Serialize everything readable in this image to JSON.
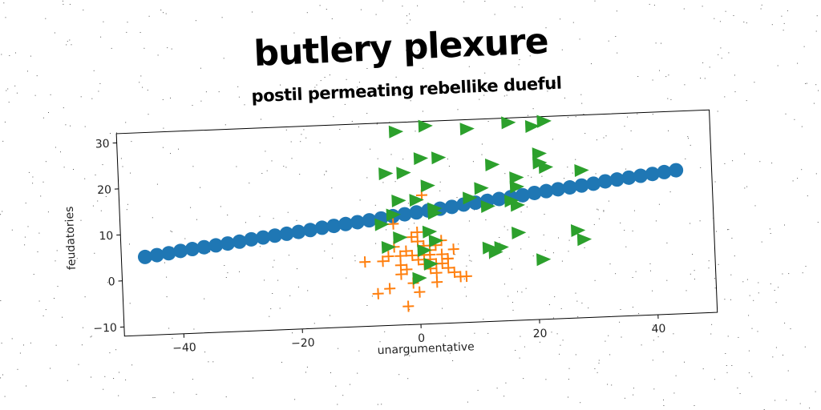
{
  "chart_data": {
    "type": "scatter",
    "title": "butlery plexure",
    "subtitle": "postil permeating rebellike dueful",
    "xlabel": "unargumentative",
    "ylabel": "feudatories",
    "xlim": [
      -50,
      50
    ],
    "ylim": [
      -12,
      32
    ],
    "xticks": [
      -40,
      -20,
      0,
      20,
      40
    ],
    "yticks": [
      -10,
      0,
      10,
      20,
      30
    ],
    "grid": false,
    "colors": {
      "line": "#1f77b4",
      "plus": "#ff7f0e",
      "triangle": "#2ca02c"
    },
    "series": [
      {
        "marker": "circle",
        "x": [
          -46,
          -44,
          -42,
          -40,
          -38,
          -36,
          -34,
          -32,
          -30,
          -28,
          -26,
          -24,
          -22,
          -20,
          -18,
          -16,
          -14,
          -12,
          -10,
          -8,
          -6,
          -4,
          -2,
          0,
          2,
          4,
          6,
          8,
          10,
          12,
          14,
          16,
          18,
          20,
          22,
          24,
          26,
          28,
          30,
          32,
          34,
          36,
          38,
          40,
          42,
          44
        ],
        "y": [
          5.0,
          5.3,
          5.6,
          6.0,
          6.3,
          6.6,
          6.9,
          7.2,
          7.5,
          7.9,
          8.2,
          8.5,
          8.8,
          9.1,
          9.4,
          9.8,
          10.1,
          10.4,
          10.7,
          11.0,
          11.3,
          11.7,
          12.0,
          12.3,
          12.6,
          12.9,
          13.2,
          13.6,
          13.9,
          14.2,
          14.5,
          14.8,
          15.1,
          15.5,
          15.8,
          16.1,
          16.4,
          16.7,
          17.0,
          17.4,
          17.7,
          18.0,
          18.3,
          18.6,
          18.9,
          19.2
        ]
      },
      {
        "marker": "plus",
        "x": [
          -9,
          -6,
          -5,
          -4,
          -3,
          -3,
          -2,
          -2,
          -1,
          -1,
          0,
          0,
          0,
          1,
          1,
          1,
          2,
          2,
          2,
          3,
          3,
          4,
          4,
          5,
          5,
          6,
          7,
          8,
          -7,
          -5,
          -4,
          2,
          3,
          1,
          -2,
          0,
          4,
          6,
          -3,
          5,
          3,
          -1
        ],
        "y": [
          2,
          2,
          3,
          5,
          1,
          -1,
          0,
          4,
          3,
          7,
          6,
          2,
          8,
          3,
          1,
          5,
          4,
          2,
          0,
          1,
          -1,
          3,
          6,
          2,
          0,
          4,
          -2,
          -2,
          -5,
          -4,
          10,
          3,
          -3,
          16,
          -8,
          -5,
          1,
          -1,
          3,
          2,
          5,
          -3
        ]
      },
      {
        "marker": "triangle",
        "x": [
          -3,
          2,
          9,
          20,
          22,
          -5,
          -2,
          1,
          4,
          13,
          17,
          22,
          -6,
          2,
          16,
          21,
          28,
          0,
          3,
          9,
          12,
          17,
          -4,
          3,
          17,
          21,
          -3,
          2,
          12,
          14,
          -5,
          3,
          0,
          21,
          13,
          28,
          17,
          22,
          -3,
          1,
          2,
          11,
          27,
          16
        ],
        "y": [
          30,
          31,
          30,
          30,
          31,
          21,
          21,
          24,
          24,
          22,
          19,
          21,
          10,
          18,
          14,
          22,
          20,
          15,
          13,
          15,
          13,
          17,
          12,
          12,
          13,
          24,
          7,
          8,
          4,
          4,
          5,
          6,
          -2,
          1,
          3,
          5,
          7,
          31,
          15,
          4,
          1,
          17,
          7,
          31
        ]
      }
    ]
  }
}
